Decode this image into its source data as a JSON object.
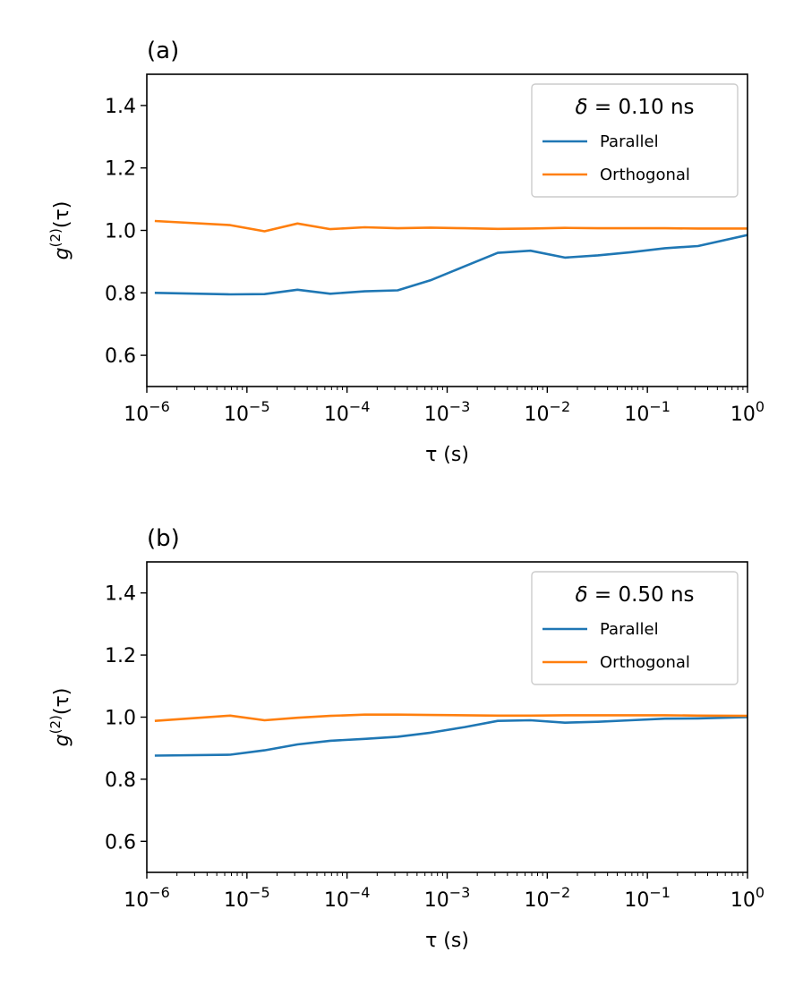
{
  "chart_data": [
    {
      "type": "line",
      "panel_label": "(a)",
      "xlabel": "τ (s)",
      "ylabel": "g(2)(τ)",
      "ylabel_parts": {
        "base": "g",
        "sup": "(2)",
        "tail": "(τ)"
      },
      "x_scale": "log",
      "xlim": [
        1e-06,
        1
      ],
      "ylim": [
        0.5,
        1.5
      ],
      "x_ticks": [
        {
          "value": 1e-06,
          "base": "10",
          "exp": "−6"
        },
        {
          "value": 1e-05,
          "base": "10",
          "exp": "−5"
        },
        {
          "value": 0.0001,
          "base": "10",
          "exp": "−4"
        },
        {
          "value": 0.001,
          "base": "10",
          "exp": "−3"
        },
        {
          "value": 0.01,
          "base": "10",
          "exp": "−2"
        },
        {
          "value": 0.1,
          "base": "10",
          "exp": "−1"
        },
        {
          "value": 1,
          "base": "10",
          "exp": "0"
        }
      ],
      "y_ticks": [
        {
          "value": 0.6,
          "label": "0.6"
        },
        {
          "value": 0.8,
          "label": "0.8"
        },
        {
          "value": 1.0,
          "label": "1.0"
        },
        {
          "value": 1.2,
          "label": "1.2"
        },
        {
          "value": 1.4,
          "label": "1.4"
        }
      ],
      "grid": false,
      "legend": {
        "title": "δ = 0.10 ns",
        "title_parts": {
          "sym": "δ",
          "rest": " = 0.10 ns"
        },
        "placement": "upper-right"
      },
      "x": [
        1.2e-06,
        6.8e-06,
        1.5e-05,
        3.2e-05,
        6.8e-05,
        0.00015,
        0.00032,
        0.00068,
        0.0015,
        0.0032,
        0.0068,
        0.015,
        0.032,
        0.068,
        0.15,
        0.32,
        1.0
      ],
      "series": [
        {
          "name": "Parallel",
          "color": "#1f77b4",
          "values": [
            0.8,
            0.795,
            0.796,
            0.81,
            0.797,
            0.805,
            0.808,
            0.84,
            0.885,
            0.928,
            0.935,
            0.913,
            0.92,
            0.93,
            0.943,
            0.95,
            0.985
          ]
        },
        {
          "name": "Orthogonal",
          "color": "#ff7f0e",
          "values": [
            1.03,
            1.017,
            0.997,
            1.022,
            1.004,
            1.01,
            1.007,
            1.009,
            1.007,
            1.005,
            1.006,
            1.008,
            1.007,
            1.007,
            1.007,
            1.006,
            1.006
          ]
        }
      ]
    },
    {
      "type": "line",
      "panel_label": "(b)",
      "xlabel": "τ (s)",
      "ylabel": "g(2)(τ)",
      "ylabel_parts": {
        "base": "g",
        "sup": "(2)",
        "tail": "(τ)"
      },
      "x_scale": "log",
      "xlim": [
        1e-06,
        1
      ],
      "ylim": [
        0.5,
        1.5
      ],
      "x_ticks": [
        {
          "value": 1e-06,
          "base": "10",
          "exp": "−6"
        },
        {
          "value": 1e-05,
          "base": "10",
          "exp": "−5"
        },
        {
          "value": 0.0001,
          "base": "10",
          "exp": "−4"
        },
        {
          "value": 0.001,
          "base": "10",
          "exp": "−3"
        },
        {
          "value": 0.01,
          "base": "10",
          "exp": "−2"
        },
        {
          "value": 0.1,
          "base": "10",
          "exp": "−1"
        },
        {
          "value": 1,
          "base": "10",
          "exp": "0"
        }
      ],
      "y_ticks": [
        {
          "value": 0.6,
          "label": "0.6"
        },
        {
          "value": 0.8,
          "label": "0.8"
        },
        {
          "value": 1.0,
          "label": "1.0"
        },
        {
          "value": 1.2,
          "label": "1.2"
        },
        {
          "value": 1.4,
          "label": "1.4"
        }
      ],
      "grid": false,
      "legend": {
        "title": "δ = 0.50 ns",
        "title_parts": {
          "sym": "δ",
          "rest": " = 0.50 ns"
        },
        "placement": "upper-right"
      },
      "x": [
        1.2e-06,
        6.8e-06,
        1.5e-05,
        3.2e-05,
        6.8e-05,
        0.00015,
        0.00032,
        0.00068,
        0.0015,
        0.0032,
        0.0068,
        0.015,
        0.032,
        0.068,
        0.15,
        0.32,
        1.0
      ],
      "series": [
        {
          "name": "Parallel",
          "color": "#1f77b4",
          "values": [
            0.876,
            0.879,
            0.893,
            0.912,
            0.924,
            0.93,
            0.937,
            0.95,
            0.968,
            0.988,
            0.99,
            0.982,
            0.985,
            0.99,
            0.995,
            0.996,
            1.0
          ]
        },
        {
          "name": "Orthogonal",
          "color": "#ff7f0e",
          "values": [
            0.988,
            1.005,
            0.99,
            0.998,
            1.004,
            1.008,
            1.008,
            1.007,
            1.006,
            1.005,
            1.005,
            1.006,
            1.006,
            1.006,
            1.006,
            1.005,
            1.004
          ]
        }
      ]
    }
  ]
}
